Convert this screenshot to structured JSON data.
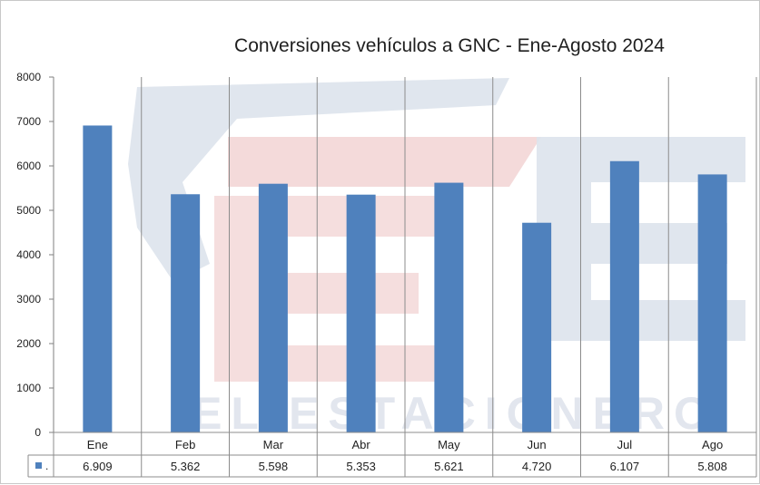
{
  "chart_data": {
    "type": "bar",
    "title": "Conversiones vehículos a GNC - Ene-Agosto 2024",
    "categories": [
      "Ene",
      "Feb",
      "Mar",
      "Abr",
      "May",
      "Jun",
      "Jul",
      "Ago"
    ],
    "series": [
      {
        "name": ".",
        "values": [
          6909,
          5362,
          5598,
          5353,
          5621,
          4720,
          6107,
          5808
        ],
        "labels": [
          "6.909",
          "5.362",
          "5.598",
          "5.353",
          "5.621",
          "4.720",
          "6.107",
          "5.808"
        ],
        "color": "#4f81bd"
      }
    ],
    "ylim": [
      0,
      8000
    ],
    "yticks": [
      0,
      1000,
      2000,
      3000,
      4000,
      5000,
      6000,
      7000,
      8000
    ],
    "grid": "vertical category dividers",
    "legend": "data table below x-axis",
    "watermark_text": "EL ESTACIONERO",
    "watermark_colors": {
      "blue": "#dde3ec",
      "red": "#f4dada"
    }
  }
}
